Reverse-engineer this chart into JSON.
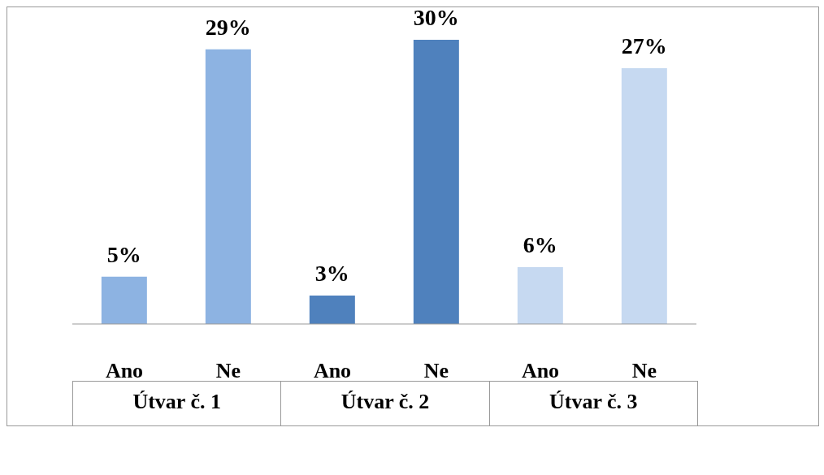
{
  "chart_data": {
    "type": "bar",
    "categories": [
      "Ano",
      "Ne",
      "Ano",
      "Ne",
      "Ano",
      "Ne"
    ],
    "values": [
      5,
      29,
      3,
      30,
      6,
      27
    ],
    "colors": [
      "#8db3e2",
      "#8db3e2",
      "#4f81bd",
      "#4f81bd",
      "#c6d9f1",
      "#c6d9f1"
    ],
    "value_labels": [
      "5%",
      "29%",
      "3%",
      "30%",
      "6%",
      "27%"
    ],
    "annotations": [
      "Útvar č. 1",
      "Útvar č. 2",
      "Útvar č. 3"
    ]
  }
}
